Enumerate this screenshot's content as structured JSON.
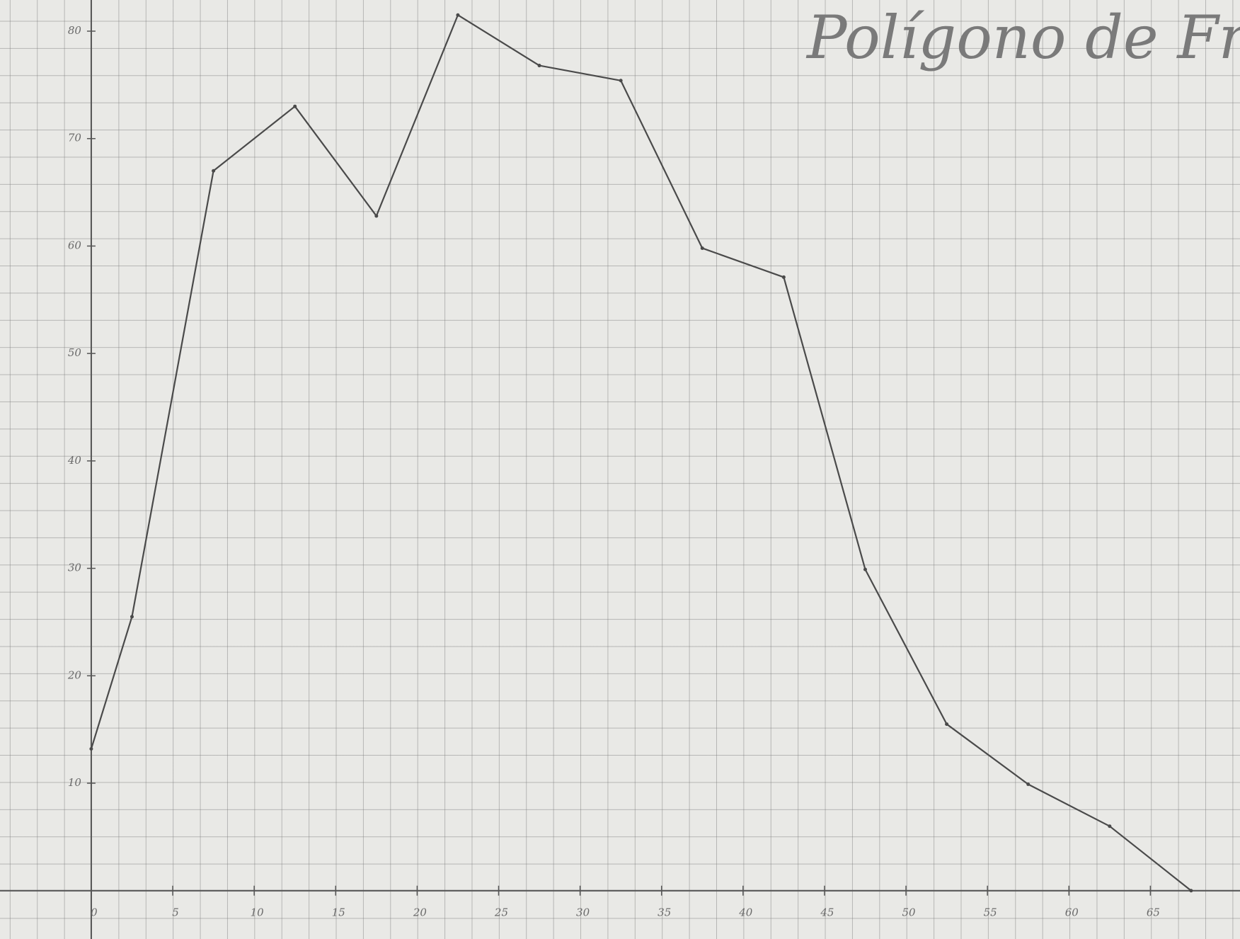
{
  "chart_data": {
    "type": "line",
    "title": "Polígono de Fr",
    "x": [
      0,
      2.5,
      7.5,
      12.5,
      17.5,
      22.5,
      27.5,
      32.5,
      37.5,
      42.5,
      47.5,
      52.5,
      57.5,
      62.5,
      67.5
    ],
    "series": [
      {
        "color": "#4a4a4a",
        "values": [
          13.2,
          25.5,
          67,
          73,
          62.8,
          81.5,
          76.8,
          75.4,
          59.8,
          57.1,
          29.9,
          15.5,
          9.9,
          6,
          0
        ]
      }
    ],
    "xlim": [
      -5.6,
      70.5
    ],
    "ylim": [
      -4.5,
      82.9
    ],
    "xticks": [
      0,
      5,
      10,
      15,
      20,
      25,
      30,
      35,
      40,
      45,
      50,
      55,
      60,
      65
    ],
    "yticks": [
      10,
      20,
      30,
      40,
      50,
      60,
      70,
      80
    ],
    "grid": true
  }
}
